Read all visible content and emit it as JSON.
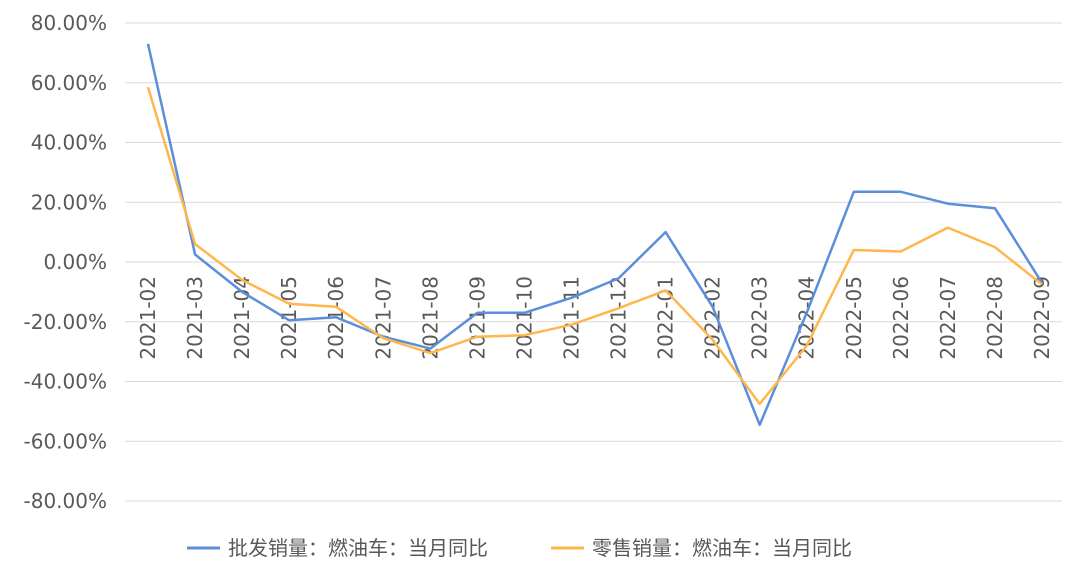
{
  "chart_data": {
    "type": "line",
    "x": [
      "2021-02",
      "2021-03",
      "2021-04",
      "2021-05",
      "2021-06",
      "2021-07",
      "2021-08",
      "2021-09",
      "2021-10",
      "2021-11",
      "2021-12",
      "2022-01",
      "2022-02",
      "2022-03",
      "2022-04",
      "2022-05",
      "2022-06",
      "2022-07",
      "2022-08",
      "2022-09"
    ],
    "ylim": [
      -80,
      80
    ],
    "ytick_step": 20,
    "ytick_labels": [
      "80.00%",
      "60.00%",
      "40.00%",
      "20.00%",
      "0.00%",
      "-20.00%",
      "-40.00%",
      "-60.00%",
      "-80.00%"
    ],
    "grid": true,
    "legend_position": "bottom",
    "series": [
      {
        "name": "批发销量：燃油车：当月同比",
        "color": "#5b8fd9",
        "values": [
          73,
          2.5,
          -10,
          -19.5,
          -18.5,
          -25,
          -29,
          -17,
          -17,
          -12,
          -5.5,
          10,
          -15,
          -54.5,
          -17,
          23.5,
          23.5,
          19.5,
          18,
          -7
        ]
      },
      {
        "name": "零售销量：燃油车：当月同比",
        "color": "#ffb74d",
        "values": [
          58.5,
          6,
          -6,
          -14,
          -15,
          -25.5,
          -30.5,
          -25,
          -24.5,
          -21,
          -15.5,
          -9.5,
          -26,
          -47.5,
          -28,
          4,
          3.5,
          11.5,
          5,
          -7.5
        ]
      }
    ]
  }
}
